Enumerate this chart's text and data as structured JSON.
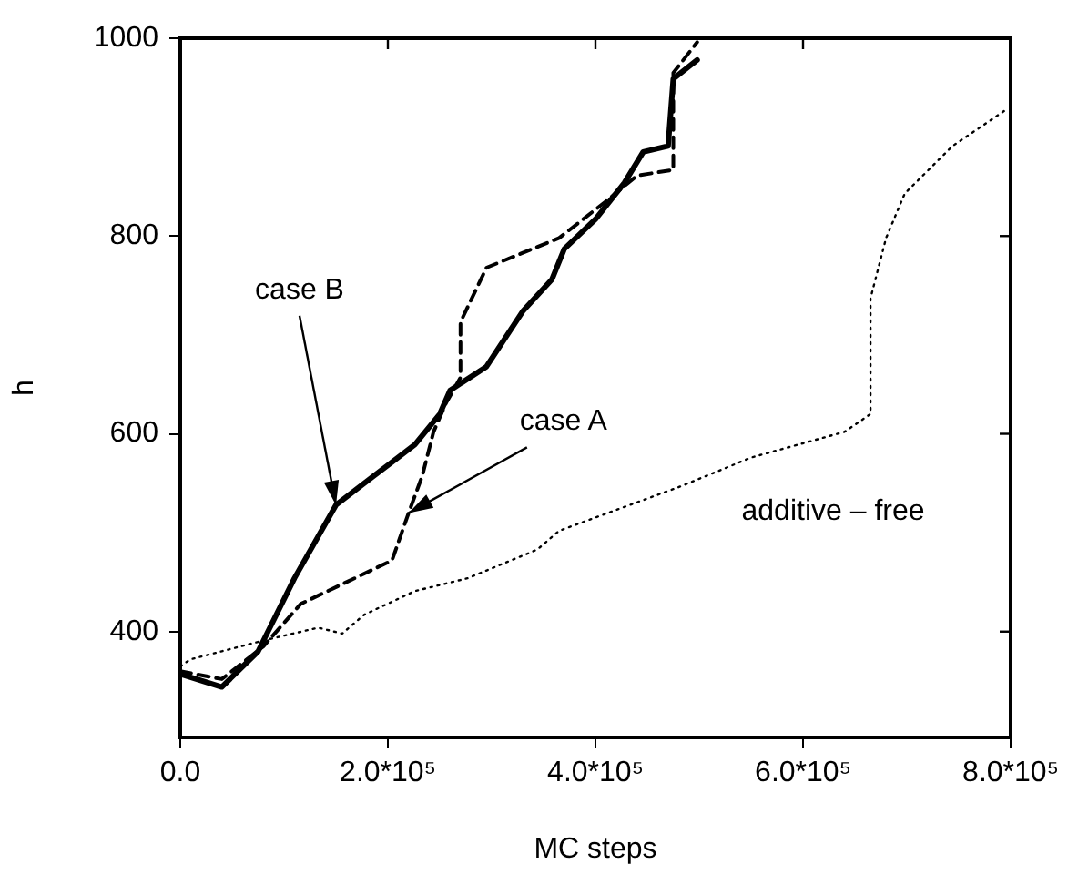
{
  "chart_data": {
    "type": "line",
    "xlabel": "MC steps",
    "ylabel": "h",
    "xlim": [
      0,
      800000
    ],
    "ylim": [
      293,
      1000
    ],
    "xticks": [
      {
        "value": 0,
        "label": "0.0"
      },
      {
        "value": 200000,
        "label": "2.0*10⁵"
      },
      {
        "value": 400000,
        "label": "4.0*10⁵"
      },
      {
        "value": 600000,
        "label": "6.0*10⁵"
      },
      {
        "value": 800000,
        "label": "8.0*10⁵"
      }
    ],
    "yticks": [
      400,
      600,
      800,
      1000
    ],
    "grid": false,
    "legend": false,
    "marker": "none",
    "series": [
      {
        "color": "#000000",
        "line_style": "solid",
        "x": [
          0,
          40000,
          75000,
          110000,
          150000,
          186000,
          226000,
          250000,
          260000,
          295000,
          330000,
          358000,
          370000,
          400000,
          428000,
          446000,
          470000,
          475000,
          498000
        ],
        "values": [
          357,
          344,
          380,
          454,
          528,
          557,
          589,
          620,
          644,
          668,
          724,
          756,
          787,
          817,
          854,
          885,
          891,
          959,
          978
        ]
      },
      {
        "color": "#000000",
        "line_style": "dashed",
        "x": [
          0,
          40000,
          80000,
          116000,
          168000,
          204000,
          220000,
          233000,
          244000,
          256000,
          270000,
          270000,
          295000,
          323000,
          365000,
          410000,
          440000,
          475000,
          475000,
          498000
        ],
        "values": [
          360,
          352,
          385,
          428,
          454,
          472,
          520,
          557,
          602,
          631,
          657,
          713,
          768,
          780,
          798,
          835,
          861,
          867,
          965,
          996
        ]
      },
      {
        "color": "#000000",
        "line_style": "dotted",
        "x": [
          0,
          10000,
          80000,
          133000,
          156000,
          177000,
          226000,
          277000,
          344000,
          365000,
          480000,
          550000,
          640000,
          665000,
          665000,
          680000,
          698000,
          744000,
          796000
        ],
        "values": [
          365,
          372,
          391,
          404,
          398,
          417,
          441,
          454,
          483,
          502,
          546,
          576,
          602,
          620,
          737,
          798,
          843,
          891,
          928
        ]
      }
    ],
    "annotations": [
      {
        "text": "case B",
        "x": 150000,
        "y": 528
      },
      {
        "text": "case A",
        "x": 220000,
        "y": 520
      },
      {
        "text": "additive – free",
        "x": 550000,
        "y": 576
      }
    ]
  }
}
